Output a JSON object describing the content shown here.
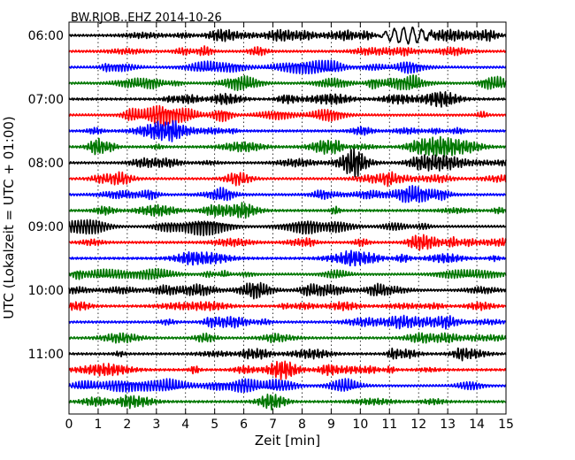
{
  "chart_data": {
    "type": "line",
    "title": "BW.RJOB..EHZ 2014-10-26",
    "xlabel": "Zeit  [min]",
    "ylabel": "UTC (Lokalzeit = UTC + 01:00)",
    "xlim": [
      0,
      15
    ],
    "x_ticks": [
      "0",
      "1",
      "2",
      "3",
      "4",
      "5",
      "6",
      "7",
      "8",
      "9",
      "10",
      "11",
      "12",
      "13",
      "14",
      "15"
    ],
    "y_tick_labels": [
      "06:00",
      "07:00",
      "08:00",
      "09:00",
      "10:00",
      "11:00"
    ],
    "x_grid": "dotted vertical lines at every minute",
    "row_interval_minutes": 15,
    "row_start_times": [
      "06:00",
      "06:15",
      "06:30",
      "06:45",
      "07:00",
      "07:15",
      "07:30",
      "07:45",
      "08:00",
      "08:15",
      "08:30",
      "08:45",
      "09:00",
      "09:15",
      "09:30",
      "09:45",
      "10:00",
      "10:15",
      "10:30",
      "10:45",
      "11:00",
      "11:15",
      "11:30",
      "11:45"
    ],
    "color_cycle": [
      "#000000",
      "#ff0000",
      "#0000ff",
      "#007700"
    ],
    "events": [
      {
        "row": 0,
        "start_min": 10.6,
        "end_min": 12.6,
        "note": "larger-amplitude oscillation"
      }
    ]
  }
}
